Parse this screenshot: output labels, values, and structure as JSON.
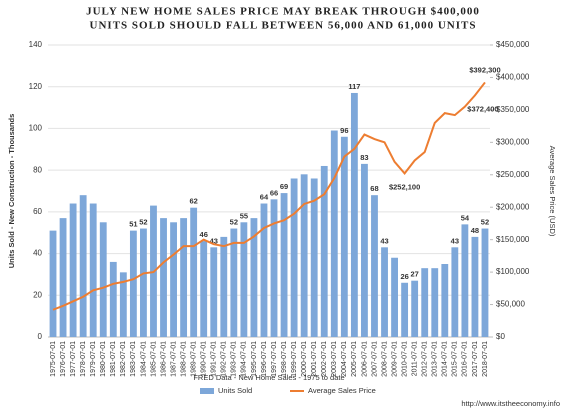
{
  "chart_data": {
    "type": "bar_line",
    "title": "JULY NEW HOME SALES PRICE MAY BREAK THROUGH $400,000",
    "subtitle": "UNITS SOLD SHOULD FALL BETWEEN 56,000 AND 61,000 UNITS",
    "x_label": "FRED Data - New Home Sales - 1975 to date",
    "y_label": "Units Sold - New Construction - Thousands",
    "y2_label": "Average Sales Price (USD)",
    "source": "http://www.itstheeconomy.info",
    "categories": [
      "1975-07-01",
      "1976-07-01",
      "1977-07-01",
      "1978-07-01",
      "1979-07-01",
      "1980-07-01",
      "1981-07-01",
      "1982-07-01",
      "1983-07-01",
      "1984-07-01",
      "1985-07-01",
      "1986-07-01",
      "1987-07-01",
      "1988-07-01",
      "1989-07-01",
      "1990-07-01",
      "1991-07-01",
      "1992-07-01",
      "1993-07-01",
      "1994-07-01",
      "1995-07-01",
      "1996-07-01",
      "1997-07-01",
      "1998-07-01",
      "1999-07-01",
      "2000-07-01",
      "2001-07-01",
      "2002-07-01",
      "2003-07-01",
      "2004-07-01",
      "2005-07-01",
      "2006-07-01",
      "2007-07-01",
      "2008-07-01",
      "2009-07-01",
      "2010-07-01",
      "2011-07-01",
      "2012-07-01",
      "2013-07-01",
      "2014-07-01",
      "2015-07-01",
      "2016-07-01",
      "2017-07-01",
      "2018-07-01"
    ],
    "series": [
      {
        "name": "Units Sold",
        "color": "#7da7d9",
        "kind": "bar",
        "values": [
          51,
          57,
          64,
          68,
          64,
          55,
          36,
          31,
          51,
          52,
          63,
          57,
          55,
          57,
          62,
          46,
          43,
          48,
          52,
          55,
          57,
          64,
          66,
          69,
          76,
          78,
          76,
          82,
          99,
          96,
          117,
          83,
          68,
          43,
          38,
          26,
          27,
          33,
          33,
          35,
          43,
          54,
          48,
          52
        ],
        "value_labels": [
          null,
          null,
          null,
          null,
          null,
          null,
          null,
          null,
          "51",
          "52",
          null,
          null,
          null,
          null,
          "62",
          "46",
          "43",
          null,
          "52",
          "55",
          null,
          "64",
          "66",
          "69",
          null,
          null,
          null,
          null,
          null,
          "96",
          "117",
          "83",
          "68",
          "43",
          null,
          "26",
          "27",
          null,
          null,
          null,
          "43",
          "54",
          "48",
          "52"
        ]
      },
      {
        "name": "Average Sales Price",
        "color": "#ed7d31",
        "kind": "line",
        "axis": "y2",
        "values": [
          42000,
          48000,
          55000,
          62000,
          72000,
          76000,
          82000,
          85000,
          89000,
          98000,
          100000,
          115000,
          127000,
          140000,
          140000,
          150000,
          143000,
          140000,
          145000,
          145000,
          155000,
          168000,
          175000,
          180000,
          190000,
          205000,
          210000,
          220000,
          245000,
          278000,
          290000,
          312000,
          305000,
          300000,
          270000,
          252100,
          272000,
          285000,
          330000,
          345000,
          342000,
          355000,
          372400,
          392300
        ],
        "value_labels": [
          null,
          null,
          null,
          null,
          null,
          null,
          null,
          null,
          null,
          null,
          null,
          null,
          null,
          null,
          null,
          null,
          null,
          null,
          null,
          null,
          null,
          null,
          null,
          null,
          null,
          null,
          null,
          null,
          null,
          null,
          null,
          null,
          null,
          null,
          null,
          "$252,100",
          null,
          null,
          null,
          null,
          null,
          null,
          "$372,400",
          "$392,300"
        ]
      }
    ],
    "ylim": [
      0,
      140
    ],
    "yticks": [
      0,
      20,
      40,
      60,
      80,
      100,
      120,
      140
    ],
    "y2lim": [
      0,
      450000
    ],
    "y2ticks": [
      {
        "value": 0,
        "label": "$0"
      },
      {
        "value": 50000,
        "label": "$50,000"
      },
      {
        "value": 100000,
        "label": "$100,000"
      },
      {
        "value": 150000,
        "label": "$150,000"
      },
      {
        "value": 200000,
        "label": "$200,000"
      },
      {
        "value": 250000,
        "label": "$250,000"
      },
      {
        "value": 300000,
        "label": "$300,000"
      },
      {
        "value": 350000,
        "label": "$350,000"
      },
      {
        "value": 400000,
        "label": "$400,000"
      },
      {
        "value": 450000,
        "label": "$450,000"
      }
    ],
    "grid": true,
    "legend": "bottom"
  }
}
